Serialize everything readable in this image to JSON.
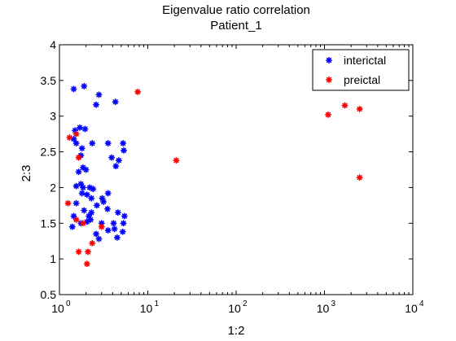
{
  "chart_data": {
    "type": "scatter",
    "title": "Eigenvalue ratio correlation",
    "subtitle": "Patient_1",
    "xlabel": "1:2",
    "ylabel": "2:3",
    "xscale": "log",
    "xlim": [
      1,
      10000
    ],
    "ylim": [
      0.5,
      4
    ],
    "xticks": [
      {
        "value": 1,
        "base": "10",
        "exp": "0"
      },
      {
        "value": 10,
        "base": "10",
        "exp": "1"
      },
      {
        "value": 100,
        "base": "10",
        "exp": "2"
      },
      {
        "value": 1000,
        "base": "10",
        "exp": "3"
      },
      {
        "value": 10000,
        "base": "10",
        "exp": "4"
      }
    ],
    "yticks": [
      {
        "value": 0.5,
        "label": "0.5"
      },
      {
        "value": 1,
        "label": "1"
      },
      {
        "value": 1.5,
        "label": "1.5"
      },
      {
        "value": 2,
        "label": "2"
      },
      {
        "value": 2.5,
        "label": "2.5"
      },
      {
        "value": 3,
        "label": "3"
      },
      {
        "value": 3.5,
        "label": "3.5"
      },
      {
        "value": 4,
        "label": "4"
      }
    ],
    "grid": false,
    "legend_position": "top-right",
    "series": [
      {
        "name": "interictal",
        "color": "#0000ff",
        "marker": "asterisk",
        "points": [
          [
            1.45,
            3.38
          ],
          [
            1.9,
            3.42
          ],
          [
            2.8,
            3.3
          ],
          [
            2.6,
            3.16
          ],
          [
            4.3,
            3.2
          ],
          [
            1.5,
            2.8
          ],
          [
            1.7,
            2.84
          ],
          [
            1.95,
            2.82
          ],
          [
            1.45,
            2.68
          ],
          [
            1.55,
            2.62
          ],
          [
            1.8,
            2.55
          ],
          [
            2.35,
            2.62
          ],
          [
            3.55,
            2.62
          ],
          [
            5.25,
            2.62
          ],
          [
            5.35,
            2.52
          ],
          [
            1.75,
            2.45
          ],
          [
            3.9,
            2.42
          ],
          [
            4.7,
            2.38
          ],
          [
            1.85,
            2.28
          ],
          [
            2.0,
            2.25
          ],
          [
            1.65,
            2.22
          ],
          [
            4.35,
            2.3
          ],
          [
            1.75,
            2.05
          ],
          [
            1.85,
            2.0
          ],
          [
            1.55,
            2.02
          ],
          [
            2.2,
            2.0
          ],
          [
            2.4,
            1.98
          ],
          [
            1.8,
            1.92
          ],
          [
            2.05,
            1.9
          ],
          [
            2.3,
            1.85
          ],
          [
            3.05,
            1.85
          ],
          [
            3.55,
            1.92
          ],
          [
            3.15,
            1.8
          ],
          [
            2.65,
            1.75
          ],
          [
            1.55,
            1.78
          ],
          [
            1.45,
            1.6
          ],
          [
            1.9,
            1.68
          ],
          [
            2.15,
            1.6
          ],
          [
            2.3,
            1.65
          ],
          [
            3.5,
            1.7
          ],
          [
            4.6,
            1.65
          ],
          [
            1.75,
            1.5
          ],
          [
            2.05,
            1.52
          ],
          [
            2.25,
            1.55
          ],
          [
            3.0,
            1.5
          ],
          [
            4.1,
            1.5
          ],
          [
            5.45,
            1.6
          ],
          [
            5.3,
            1.5
          ],
          [
            1.4,
            1.45
          ],
          [
            2.6,
            1.35
          ],
          [
            2.8,
            1.28
          ],
          [
            3.55,
            1.4
          ],
          [
            4.2,
            1.42
          ],
          [
            5.2,
            1.38
          ],
          [
            4.5,
            1.3
          ]
        ]
      },
      {
        "name": "preictal",
        "color": "#ff0000",
        "marker": "asterisk",
        "points": [
          [
            7.7,
            3.34
          ],
          [
            1100,
            3.02
          ],
          [
            1700,
            3.15
          ],
          [
            2500,
            3.1
          ],
          [
            21,
            2.38
          ],
          [
            2500,
            2.14
          ],
          [
            1.3,
            2.7
          ],
          [
            1.55,
            2.75
          ],
          [
            1.65,
            2.42
          ],
          [
            1.25,
            1.78
          ],
          [
            1.55,
            1.55
          ],
          [
            1.85,
            1.5
          ],
          [
            3.0,
            1.45
          ],
          [
            2.35,
            1.22
          ],
          [
            1.65,
            1.1
          ],
          [
            2.1,
            1.1
          ],
          [
            2.05,
            0.93
          ]
        ]
      }
    ]
  }
}
